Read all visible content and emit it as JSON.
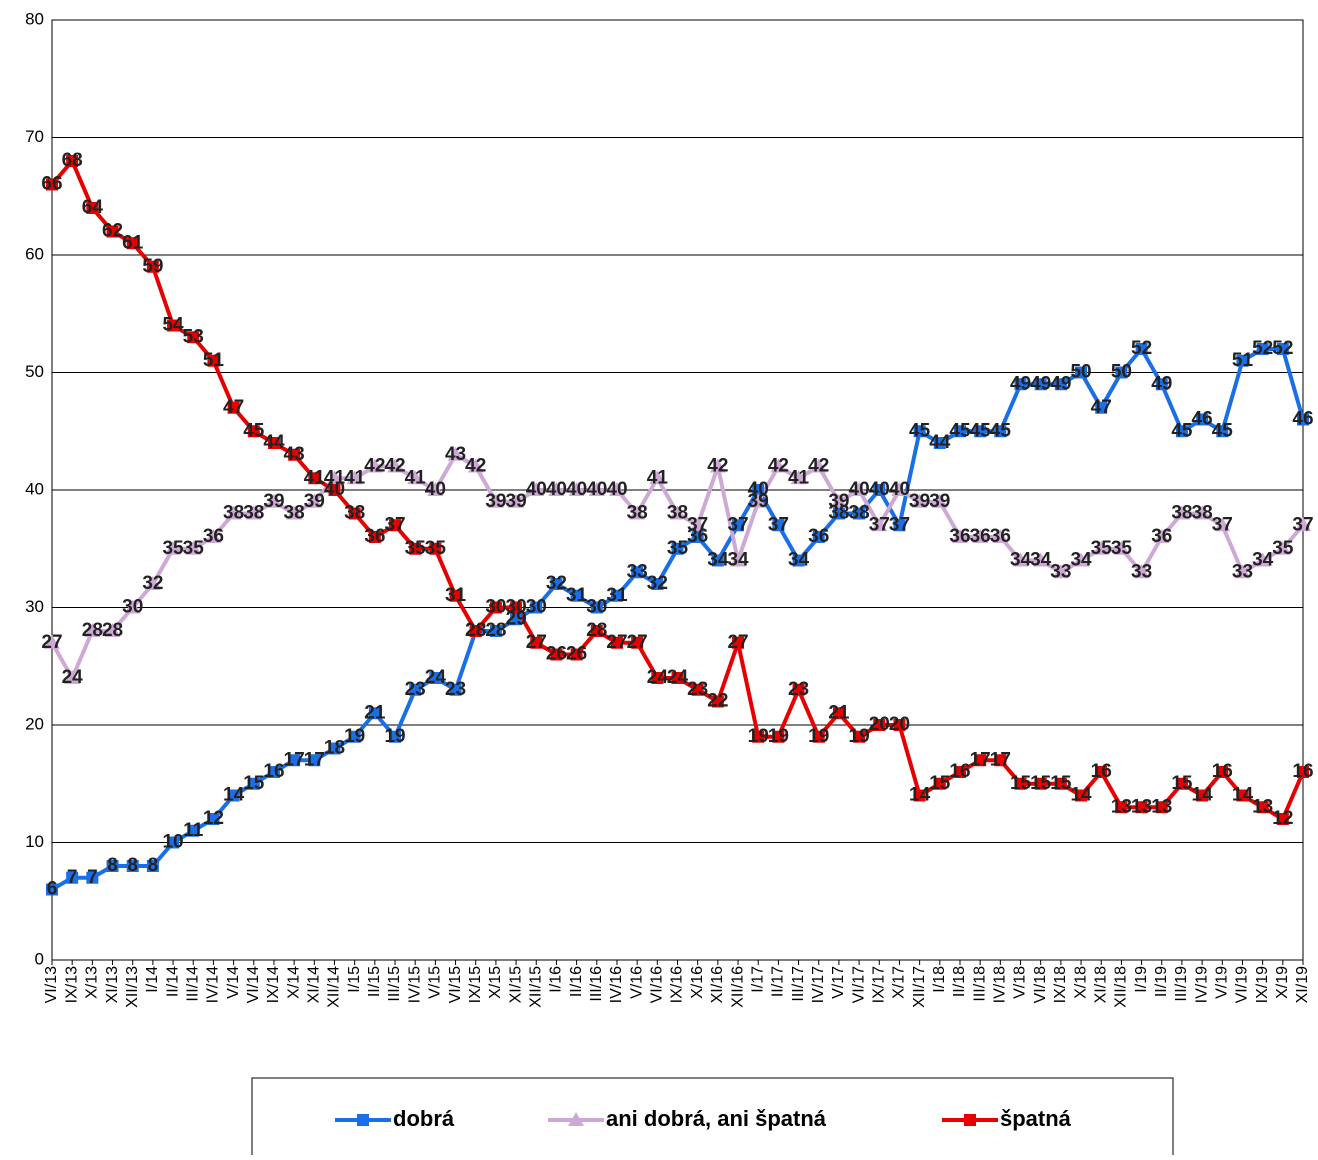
{
  "chart_data": {
    "type": "line",
    "categories": [
      "VI/13",
      "IX/13",
      "X/13",
      "XI/13",
      "XII/13",
      "I/14",
      "II/14",
      "III/14",
      "IV/14",
      "V/14",
      "VI/14",
      "IX/14",
      "X/14",
      "XI/14",
      "XII/14",
      "I/15",
      "II/15",
      "III/15",
      "IV/15",
      "V/15",
      "VI/15",
      "IX/15",
      "X/15",
      "XI/15",
      "XII/15",
      "I/16",
      "II/16",
      "III/16",
      "IV/16",
      "V/16",
      "VI/16",
      "IX/16",
      "X/16",
      "XI/16",
      "XII/16",
      "I/17",
      "II/17",
      "III/17",
      "IV/17",
      "V/17",
      "VI/17",
      "IX/17",
      "X/17",
      "XII/17",
      "I/18",
      "II/18",
      "III/18",
      "IV/18",
      "V/18",
      "VI/18",
      "IX/18",
      "X/18",
      "XI/18",
      "XII/18",
      "I/19",
      "II/19",
      "III/19",
      "IV/19",
      "V/19",
      "VI/19",
      "IX/19",
      "X/19",
      "XI/19"
    ],
    "series": [
      {
        "name": "dobrá",
        "color": "#1a6fe8",
        "marker": "square",
        "values": [
          6,
          7,
          7,
          8,
          8,
          8,
          10,
          11,
          12,
          14,
          15,
          16,
          17,
          17,
          18,
          19,
          21,
          19,
          23,
          24,
          23,
          28,
          28,
          29,
          30,
          32,
          31,
          30,
          31,
          33,
          32,
          35,
          36,
          34,
          37,
          40,
          37,
          34,
          36,
          38,
          38,
          40,
          37,
          45,
          44,
          45,
          45,
          45,
          49,
          49,
          49,
          50,
          47,
          50,
          52,
          49,
          45,
          46,
          45,
          51,
          52,
          52,
          46
        ]
      },
      {
        "name": "ani dobrá, ani špatná",
        "color": "#cfa9d6",
        "marker": "triangle",
        "values": [
          27,
          24,
          28,
          28,
          30,
          32,
          35,
          35,
          36,
          38,
          38,
          39,
          38,
          39,
          41,
          41,
          42,
          42,
          41,
          40,
          43,
          42,
          39,
          39,
          40,
          40,
          40,
          40,
          40,
          38,
          41,
          38,
          37,
          42,
          34,
          39,
          42,
          41,
          42,
          39,
          40,
          37,
          40,
          39,
          39,
          36,
          36,
          36,
          34,
          34,
          33,
          34,
          35,
          35,
          33,
          36,
          38,
          38,
          37,
          33,
          34,
          35,
          37
        ]
      },
      {
        "name": "špatná",
        "color": "#e80000",
        "marker": "square",
        "values": [
          66,
          68,
          64,
          62,
          61,
          59,
          54,
          53,
          51,
          47,
          45,
          44,
          43,
          41,
          40,
          38,
          36,
          37,
          35,
          35,
          31,
          28,
          30,
          30,
          27,
          26,
          26,
          28,
          27,
          27,
          24,
          24,
          23,
          22,
          27,
          19,
          19,
          23,
          19,
          21,
          19,
          20,
          20,
          14,
          15,
          16,
          17,
          17,
          15,
          15,
          15,
          14,
          16,
          13,
          13,
          13,
          15,
          14,
          16,
          14,
          13,
          12,
          16
        ]
      }
    ],
    "ylim": [
      0,
      80
    ],
    "yticks": [
      0,
      10,
      20,
      30,
      40,
      50,
      60,
      70,
      80
    ],
    "grid": true,
    "legend": "bottom"
  }
}
